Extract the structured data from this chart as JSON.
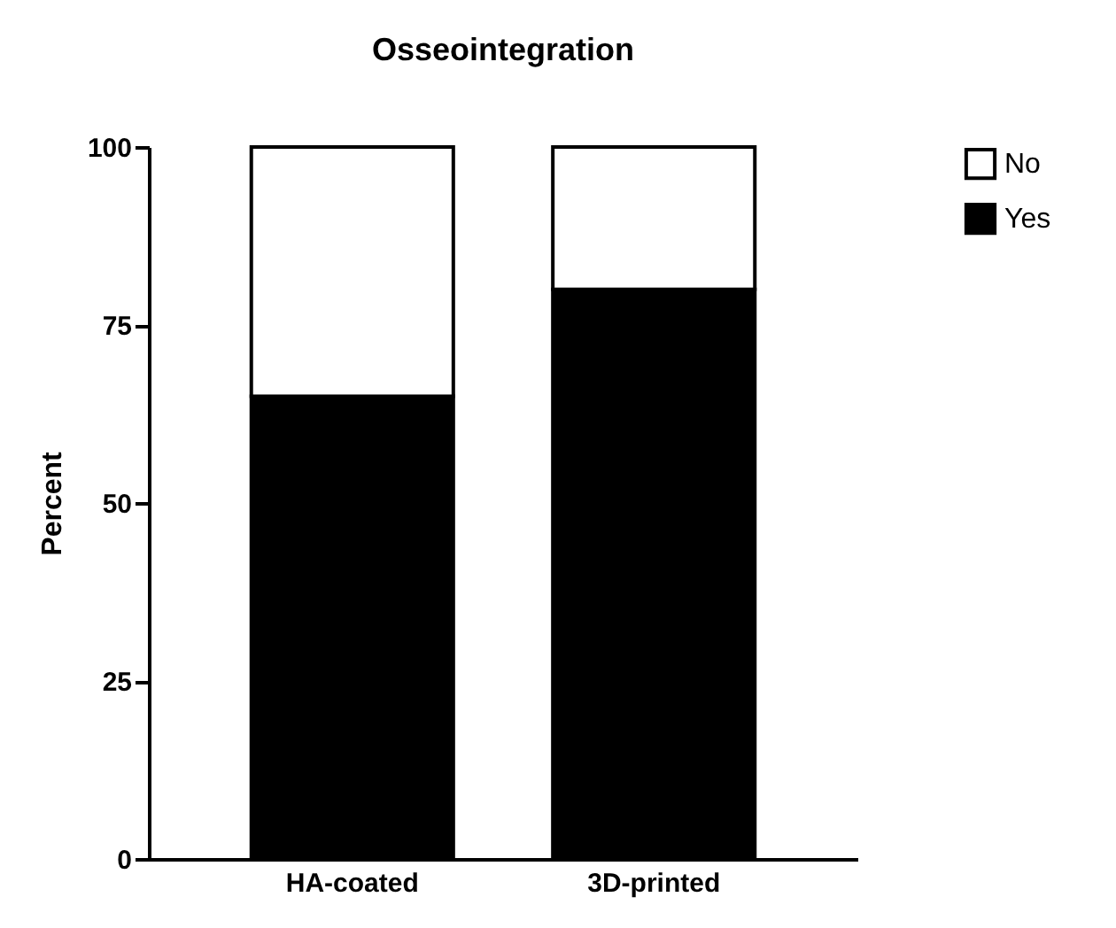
{
  "chart_data": {
    "type": "bar",
    "title": "Osseointegration",
    "ylabel": "Percent",
    "categories": [
      "HA-coated",
      "3D-printed"
    ],
    "stacked": true,
    "series": [
      {
        "name": "Yes",
        "color": "#000000",
        "values": [
          65,
          80
        ]
      },
      {
        "name": "No",
        "color": "#ffffff",
        "values": [
          35,
          20
        ]
      }
    ],
    "ylim": [
      0,
      100
    ],
    "yticks": [
      0,
      25,
      50,
      75,
      100
    ],
    "grid": false,
    "legend": "top right"
  }
}
